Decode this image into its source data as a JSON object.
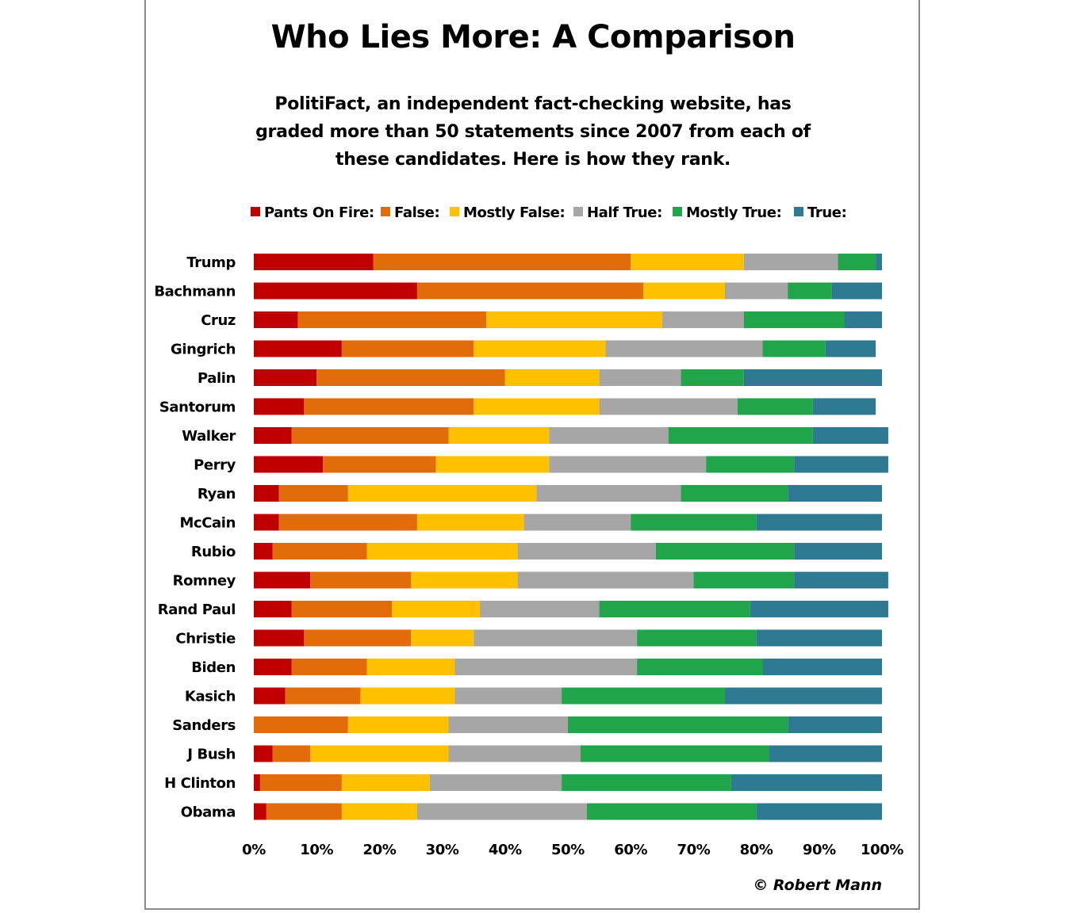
{
  "chart_data": {
    "type": "bar",
    "orientation": "horizontal",
    "stacked": true,
    "title": "Who Lies More: A Comparison",
    "subtitle": "PolitiFact, an independent fact-checking website, has graded more than 50 statements since 2007 from each of these candidates. Here is how they rank.",
    "legend_placement": "top",
    "xlim": [
      0,
      100
    ],
    "x_ticks": [
      "0%",
      "10%",
      "20%",
      "30%",
      "40%",
      "50%",
      "60%",
      "70%",
      "80%",
      "90%",
      "100%"
    ],
    "grid": false,
    "categories": [
      "Trump",
      "Bachmann",
      "Cruz",
      "Gingrich",
      "Palin",
      "Santorum",
      "Walker",
      "Perry",
      "Ryan",
      "McCain",
      "Rubio",
      "Romney",
      "Rand Paul",
      "Christie",
      "Biden",
      "Kasich",
      "Sanders",
      "J Bush",
      "H Clinton",
      "Obama"
    ],
    "series": [
      {
        "name": "Pants On Fire:",
        "color": "#c00000",
        "values": [
          19,
          26,
          7,
          14,
          10,
          8,
          6,
          11,
          4,
          4,
          3,
          9,
          6,
          8,
          6,
          5,
          0,
          3,
          1,
          2
        ]
      },
      {
        "name": "False:",
        "color": "#e36c0a",
        "values": [
          41,
          36,
          30,
          21,
          30,
          27,
          25,
          18,
          11,
          22,
          15,
          16,
          16,
          17,
          12,
          12,
          15,
          6,
          13,
          12
        ]
      },
      {
        "name": "Mostly False:",
        "color": "#ffc000",
        "values": [
          18,
          13,
          28,
          21,
          15,
          20,
          16,
          18,
          30,
          17,
          24,
          17,
          14,
          10,
          14,
          15,
          16,
          22,
          14,
          12
        ]
      },
      {
        "name": "Half True:",
        "color": "#a6a6a6",
        "values": [
          15,
          10,
          13,
          25,
          13,
          22,
          19,
          25,
          23,
          17,
          22,
          28,
          19,
          26,
          29,
          17,
          19,
          21,
          21,
          27
        ]
      },
      {
        "name": "Mostly True:",
        "color": "#21a54a",
        "values": [
          6,
          7,
          16,
          10,
          10,
          12,
          23,
          14,
          17,
          20,
          22,
          16,
          24,
          19,
          20,
          26,
          35,
          30,
          27,
          27
        ]
      },
      {
        "name": "True:",
        "color": "#2e7a92",
        "values": [
          1,
          8,
          6,
          8,
          22,
          10,
          12,
          15,
          15,
          20,
          14,
          15,
          22,
          20,
          19,
          25,
          15,
          18,
          24,
          20
        ]
      }
    ]
  },
  "credit": "© Robert Mann"
}
